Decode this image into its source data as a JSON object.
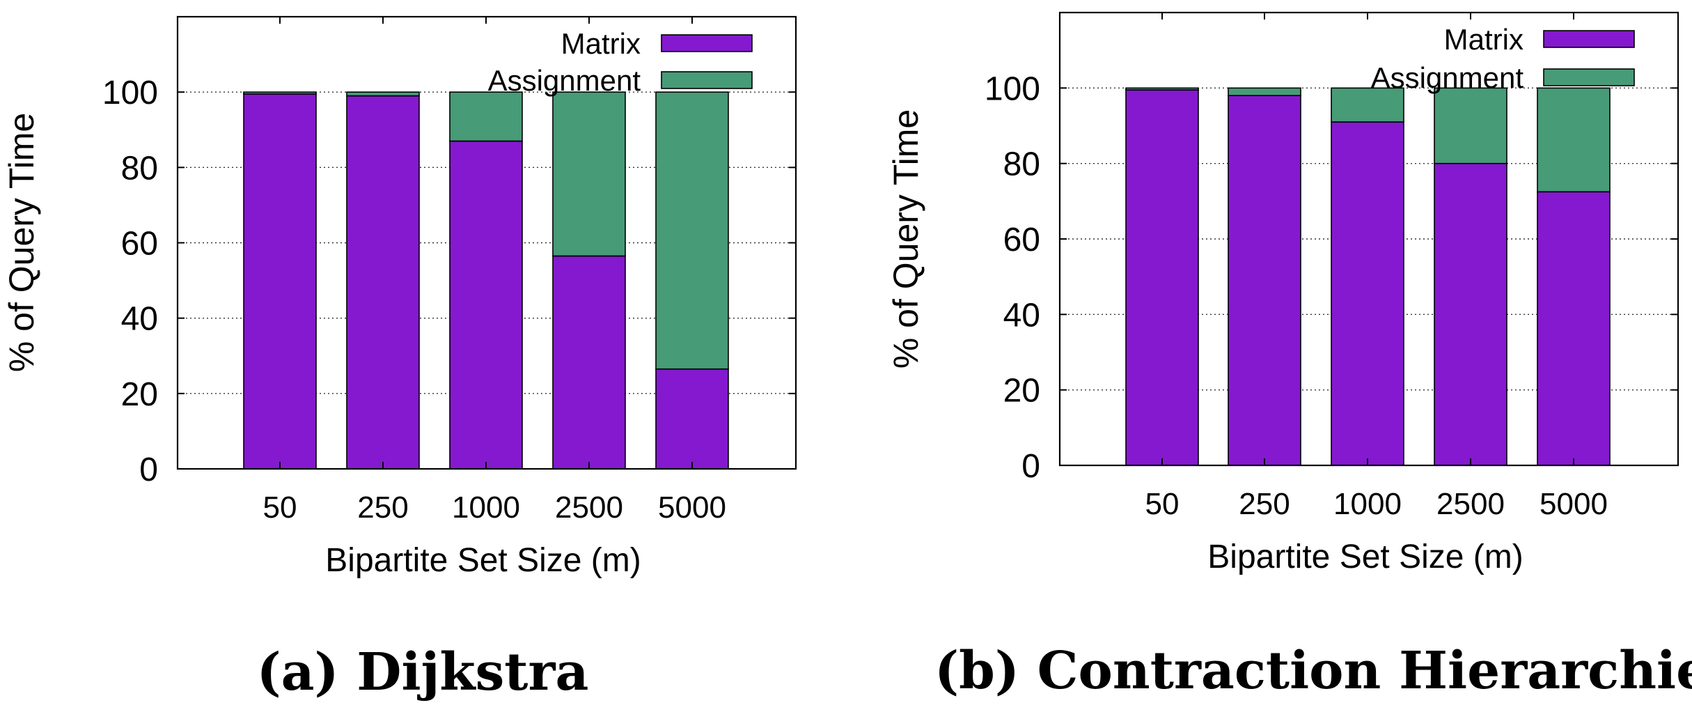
{
  "chart_data": [
    {
      "type": "bar",
      "stacked": true,
      "caption": "(a) Dijkstra",
      "categories": [
        "50",
        "250",
        "1000",
        "2500",
        "5000"
      ],
      "series": [
        {
          "name": "Matrix",
          "color": "#8419cf",
          "values": [
            99.5,
            99,
            87,
            56.5,
            26.5
          ]
        },
        {
          "name": "Assignment",
          "color": "#479b77",
          "values": [
            0.5,
            1,
            13,
            43.5,
            73.5
          ]
        }
      ],
      "xlabel": "Bipartite Set Size (m)",
      "ylabel": "% of Query Time",
      "ylim": [
        0,
        100
      ],
      "yticks": [
        0,
        20,
        40,
        60,
        80,
        100
      ],
      "grid": true,
      "legend": "top-right"
    },
    {
      "type": "bar",
      "stacked": true,
      "caption": "(b) Contraction Hierarchies",
      "categories": [
        "50",
        "250",
        "1000",
        "2500",
        "5000"
      ],
      "series": [
        {
          "name": "Matrix",
          "color": "#8419cf",
          "values": [
            99.5,
            98,
            91,
            80,
            72.5
          ]
        },
        {
          "name": "Assignment",
          "color": "#479b77",
          "values": [
            0.5,
            2,
            9,
            20,
            27.5
          ]
        }
      ],
      "xlabel": "Bipartite Set Size (m)",
      "ylabel": "% of Query Time",
      "ylim": [
        0,
        100
      ],
      "yticks": [
        0,
        20,
        40,
        60,
        80,
        100
      ],
      "grid": true,
      "legend": "top-right"
    }
  ]
}
